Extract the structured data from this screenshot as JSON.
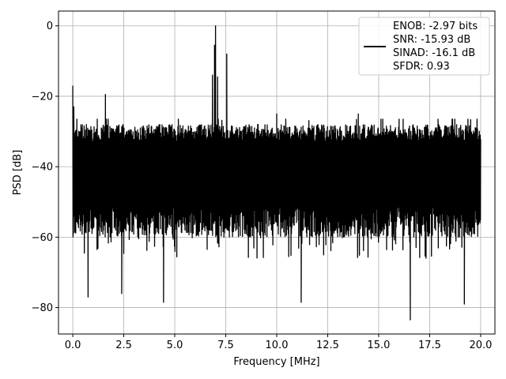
{
  "chart_data": {
    "type": "line",
    "title": "",
    "xlabel": "Frequency [MHz]",
    "ylabel": "PSD [dB]",
    "xlim": [
      -0.7,
      20.7
    ],
    "ylim": [
      -87.5,
      4.2
    ],
    "xticks": [
      0.0,
      2.5,
      5.0,
      7.5,
      10.0,
      12.5,
      15.0,
      17.5,
      20.0
    ],
    "xtick_labels": [
      "0.0",
      "2.5",
      "5.0",
      "7.5",
      "10.0",
      "12.5",
      "15.0",
      "17.5",
      "20.0"
    ],
    "yticks": [
      0,
      -20,
      -40,
      -60,
      -80
    ],
    "ytick_labels": [
      "0",
      "−20",
      "−40",
      "−60",
      "−80"
    ],
    "grid": true,
    "legend_position": "top-right",
    "legend_entries": [
      "ENOB: -2.97 bits",
      "SNR: -15.93 dB",
      "SINAD: -16.1 dB",
      "SFDR: 0.93"
    ],
    "series": [
      {
        "color": "#000000",
        "noise_envelope": {
          "x_range": [
            0.0,
            20.0
          ],
          "typical_band": [
            -55,
            -29
          ],
          "upper_envelope_db": -27,
          "lower_excursions_db": -66
        },
        "spikes": [
          {
            "x": 0.0,
            "y": -17.0
          },
          {
            "x": 0.05,
            "y": -23.0
          },
          {
            "x": 1.2,
            "y": -26.5
          },
          {
            "x": 1.6,
            "y": -19.5
          },
          {
            "x": 6.85,
            "y": -14.0
          },
          {
            "x": 6.95,
            "y": -5.5
          },
          {
            "x": 7.0,
            "y": 0.0
          },
          {
            "x": 7.1,
            "y": -14.5
          },
          {
            "x": 7.55,
            "y": -8.0
          },
          {
            "x": 10.0,
            "y": -25.0
          },
          {
            "x": 14.0,
            "y": -25.0
          }
        ],
        "dips": [
          {
            "x": 0.75,
            "y": -77.0
          },
          {
            "x": 2.4,
            "y": -76.0
          },
          {
            "x": 4.45,
            "y": -78.5
          },
          {
            "x": 11.2,
            "y": -78.5
          },
          {
            "x": 16.55,
            "y": -83.5
          },
          {
            "x": 19.2,
            "y": -79.0
          }
        ]
      }
    ]
  }
}
